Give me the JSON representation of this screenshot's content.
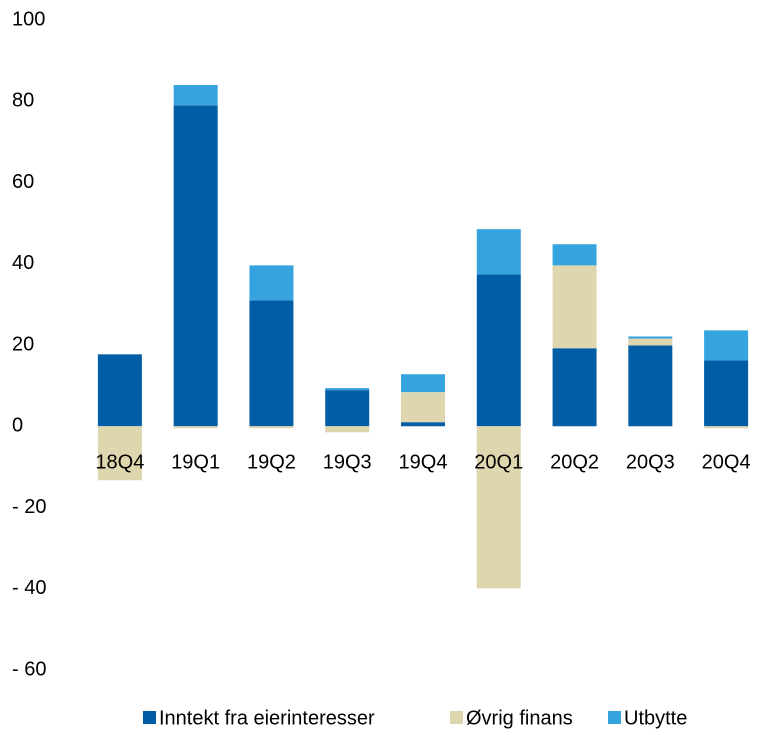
{
  "chart_data": {
    "type": "stacked_bar",
    "categories": [
      "18Q4",
      "19Q1",
      "19Q2",
      "19Q3",
      "19Q4",
      "20Q1",
      "20Q2",
      "20Q3",
      "20Q4"
    ],
    "series": [
      {
        "name": "Inntekt fra eierinteresser",
        "color": "#005da6",
        "values": [
          17.7,
          79,
          31,
          8.9,
          1,
          37.4,
          19.2,
          19.9,
          16.2
        ]
      },
      {
        "name": "Øvrig finans",
        "color": "#ded6ae",
        "values": [
          -13.3,
          -0.5,
          -0.5,
          -1.5,
          7.4,
          -39.9,
          20.4,
          1.7,
          -0.5
        ]
      },
      {
        "name": "Utbytte",
        "color": "#35a3dd",
        "values": [
          0,
          5,
          8.6,
          0.5,
          4.4,
          11.1,
          5.2,
          0.5,
          7.4
        ]
      }
    ],
    "ylim": [
      -60,
      100
    ],
    "yticks": [
      {
        "value": -60,
        "label": "- 60"
      },
      {
        "value": -40,
        "label": "- 40"
      },
      {
        "value": -20,
        "label": "- 20"
      },
      0,
      20,
      40,
      60,
      80,
      100
    ],
    "grid": false,
    "legend": "bottom"
  }
}
